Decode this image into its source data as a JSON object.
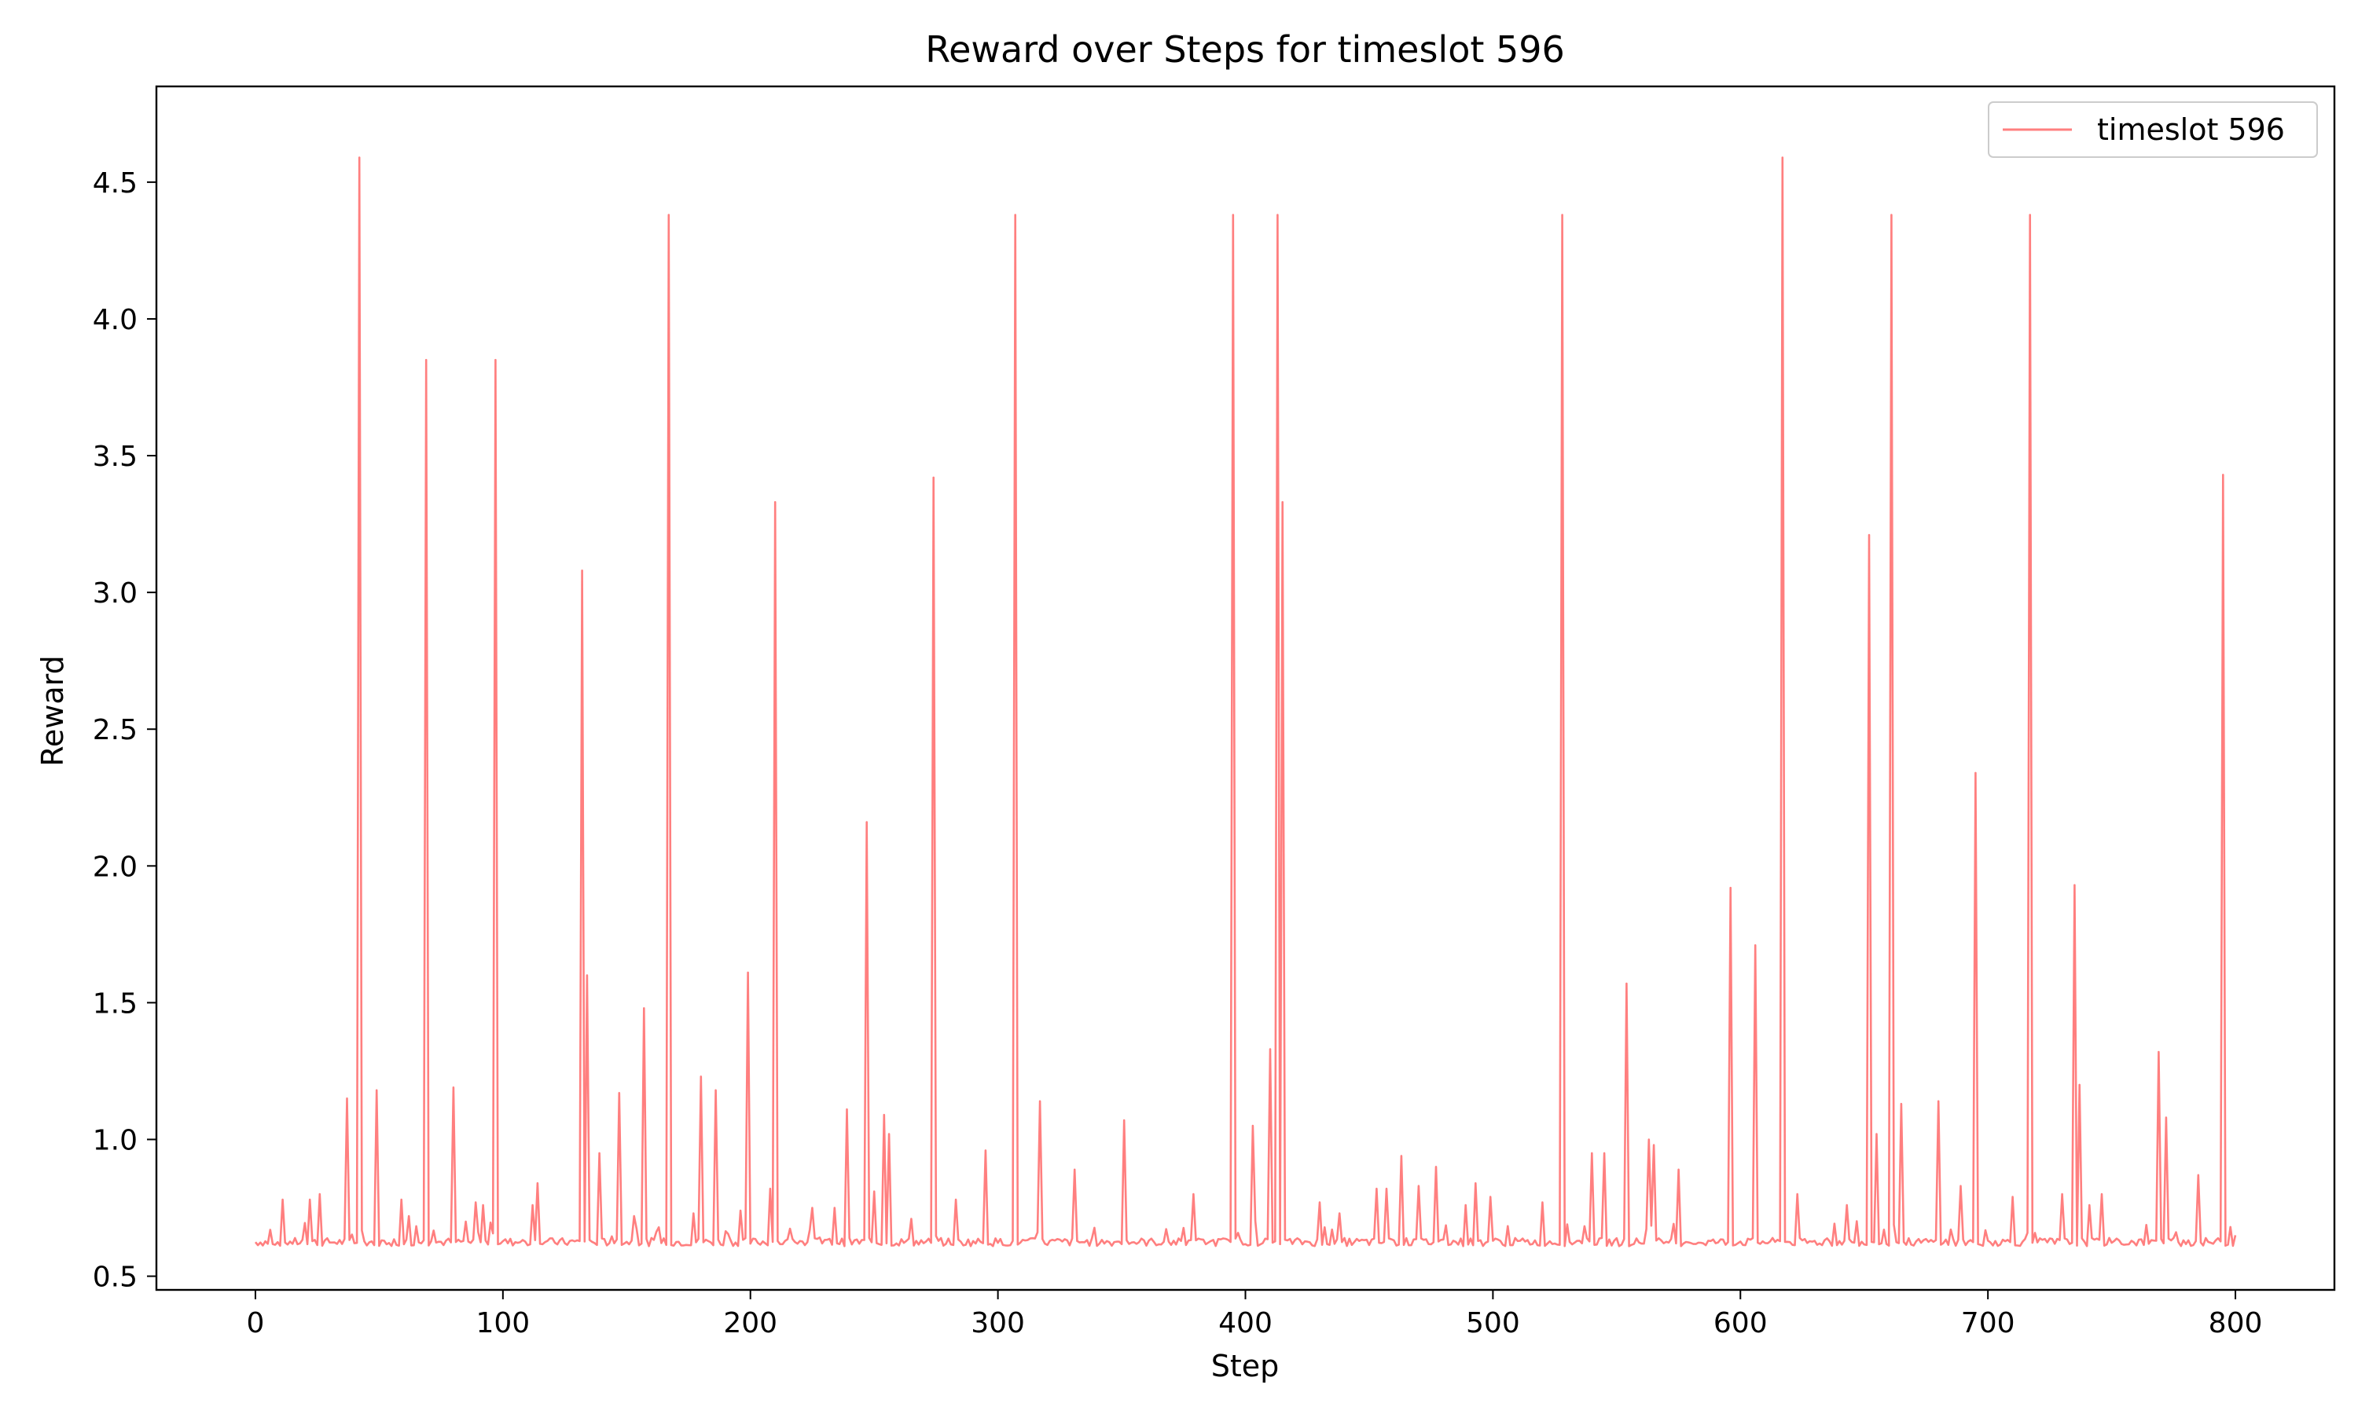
{
  "chart_data": {
    "type": "line",
    "title": "Reward over Steps for timeslot 596",
    "xlabel": "Step",
    "ylabel": "Reward",
    "xlim": [
      -40,
      840
    ],
    "ylim": [
      0.45,
      4.85
    ],
    "xticks": [
      0,
      100,
      200,
      300,
      400,
      500,
      600,
      700,
      800
    ],
    "yticks": [
      0.5,
      1.0,
      1.5,
      2.0,
      2.5,
      3.0,
      3.5,
      4.0,
      4.5
    ],
    "grid": false,
    "legend_position": "top-right",
    "baseline": 0.62,
    "line_color": "#ff7f7f",
    "series": [
      {
        "name": "timeslot 596",
        "x_start": 0,
        "x_end": 800,
        "peaks": [
          [
            11,
            0.78
          ],
          [
            22,
            0.78
          ],
          [
            26,
            0.8
          ],
          [
            37,
            1.15
          ],
          [
            42,
            4.59
          ],
          [
            49,
            1.18
          ],
          [
            59,
            0.78
          ],
          [
            62,
            0.72
          ],
          [
            69,
            3.85
          ],
          [
            80,
            1.19
          ],
          [
            85,
            0.7
          ],
          [
            89,
            0.77
          ],
          [
            92,
            0.76
          ],
          [
            97,
            3.85
          ],
          [
            112,
            0.76
          ],
          [
            114,
            0.84
          ],
          [
            132,
            3.08
          ],
          [
            134,
            1.6
          ],
          [
            139,
            0.95
          ],
          [
            147,
            1.17
          ],
          [
            153,
            0.72
          ],
          [
            157,
            1.48
          ],
          [
            167,
            4.38
          ],
          [
            177,
            0.73
          ],
          [
            180,
            1.23
          ],
          [
            186,
            1.18
          ],
          [
            196,
            0.74
          ],
          [
            199,
            1.61
          ],
          [
            208,
            0.82
          ],
          [
            210,
            3.33
          ],
          [
            225,
            0.75
          ],
          [
            234,
            0.75
          ],
          [
            239,
            1.11
          ],
          [
            247,
            2.16
          ],
          [
            250,
            0.81
          ],
          [
            254,
            1.09
          ],
          [
            256,
            1.02
          ],
          [
            265,
            0.71
          ],
          [
            274,
            3.42
          ],
          [
            283,
            0.78
          ],
          [
            295,
            0.96
          ],
          [
            307,
            4.38
          ],
          [
            317,
            1.14
          ],
          [
            331,
            0.89
          ],
          [
            351,
            1.07
          ],
          [
            379,
            0.8
          ],
          [
            395,
            4.38
          ],
          [
            403,
            1.05
          ],
          [
            410,
            1.33
          ],
          [
            413,
            4.38
          ],
          [
            415,
            3.33
          ],
          [
            430,
            0.77
          ],
          [
            438,
            0.73
          ],
          [
            453,
            0.82
          ],
          [
            457,
            0.82
          ],
          [
            463,
            0.94
          ],
          [
            470,
            0.83
          ],
          [
            477,
            0.9
          ],
          [
            489,
            0.76
          ],
          [
            493,
            0.84
          ],
          [
            499,
            0.79
          ],
          [
            520,
            0.77
          ],
          [
            528,
            4.38
          ],
          [
            540,
            0.95
          ],
          [
            545,
            0.95
          ],
          [
            554,
            1.57
          ],
          [
            563,
            1.0
          ],
          [
            565,
            0.98
          ],
          [
            575,
            0.89
          ],
          [
            596,
            1.92
          ],
          [
            606,
            1.71
          ],
          [
            617,
            4.59
          ],
          [
            623,
            0.8
          ],
          [
            643,
            0.76
          ],
          [
            652,
            3.21
          ],
          [
            655,
            1.02
          ],
          [
            661,
            4.38
          ],
          [
            665,
            1.13
          ],
          [
            680,
            1.14
          ],
          [
            689,
            0.83
          ],
          [
            695,
            2.34
          ],
          [
            710,
            0.79
          ],
          [
            717,
            4.38
          ],
          [
            730,
            0.8
          ],
          [
            735,
            1.93
          ],
          [
            737,
            1.2
          ],
          [
            741,
            0.76
          ],
          [
            746,
            0.8
          ],
          [
            769,
            1.32
          ],
          [
            772,
            1.08
          ],
          [
            785,
            0.87
          ],
          [
            795,
            3.43
          ],
          [
            798,
            0.68
          ],
          [
            800,
            0.65
          ]
        ]
      }
    ]
  }
}
